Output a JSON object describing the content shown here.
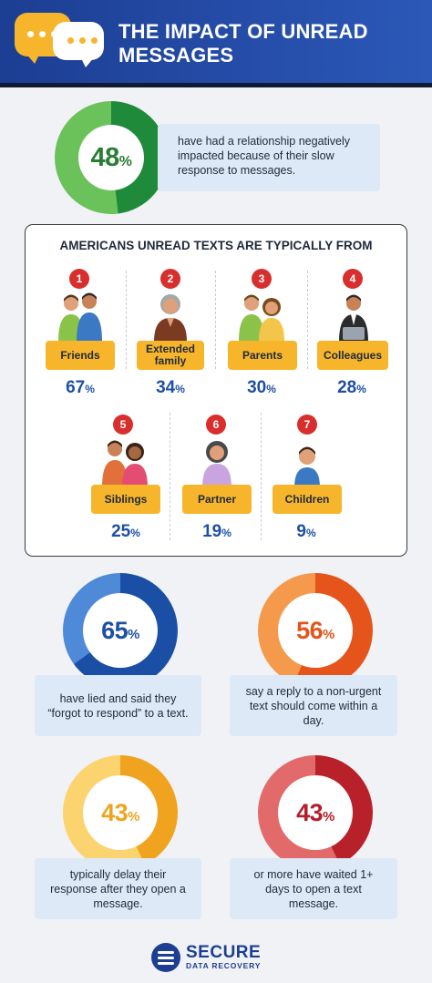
{
  "header": {
    "title": "THE IMPACT OF UNREAD MESSAGES"
  },
  "stat_relationship": {
    "value": "48",
    "unit": "%",
    "fraction": 0.48,
    "text": "have had a relationship negatively impacted because of their slow response to messages."
  },
  "unread_from": {
    "title": "AMERICANS UNREAD TEXTS ARE TYPICALLY FROM",
    "items": [
      {
        "rank": "1",
        "label": "Friends",
        "value": "67",
        "unit": "%"
      },
      {
        "rank": "2",
        "label": "Extended family",
        "value": "34",
        "unit": "%"
      },
      {
        "rank": "3",
        "label": "Parents",
        "value": "30",
        "unit": "%"
      },
      {
        "rank": "4",
        "label": "Colleagues",
        "value": "28",
        "unit": "%"
      },
      {
        "rank": "5",
        "label": "Siblings",
        "value": "25",
        "unit": "%"
      },
      {
        "rank": "6",
        "label": "Partner",
        "value": "19",
        "unit": "%"
      },
      {
        "rank": "7",
        "label": "Children",
        "value": "9",
        "unit": "%"
      }
    ]
  },
  "stats": [
    {
      "value": "65",
      "unit": "%",
      "fraction": 0.65,
      "text": "have lied and said they “forgot to respond” to a text.",
      "color": "#1b4fa6"
    },
    {
      "value": "56",
      "unit": "%",
      "fraction": 0.56,
      "text": "say a reply to a non-urgent text should come within a day.",
      "color": "#e5541a"
    },
    {
      "value": "43",
      "unit": "%",
      "fraction": 0.43,
      "text": "typically delay their response after they open a message.",
      "color": "#f0a31e"
    },
    {
      "value": "43",
      "unit": "%",
      "fraction": 0.43,
      "text": "or more have waited 1+ days to open a text message.",
      "color": "#b9212a"
    }
  ],
  "footer": {
    "brand_line1": "SECURE",
    "brand_line2": "DATA RECOVERY"
  },
  "colors": {
    "header": "#1c3e93",
    "accent_yellow": "#f7b52b",
    "rank_red": "#d92e2e",
    "percent_blue": "#1e4fa5"
  }
}
